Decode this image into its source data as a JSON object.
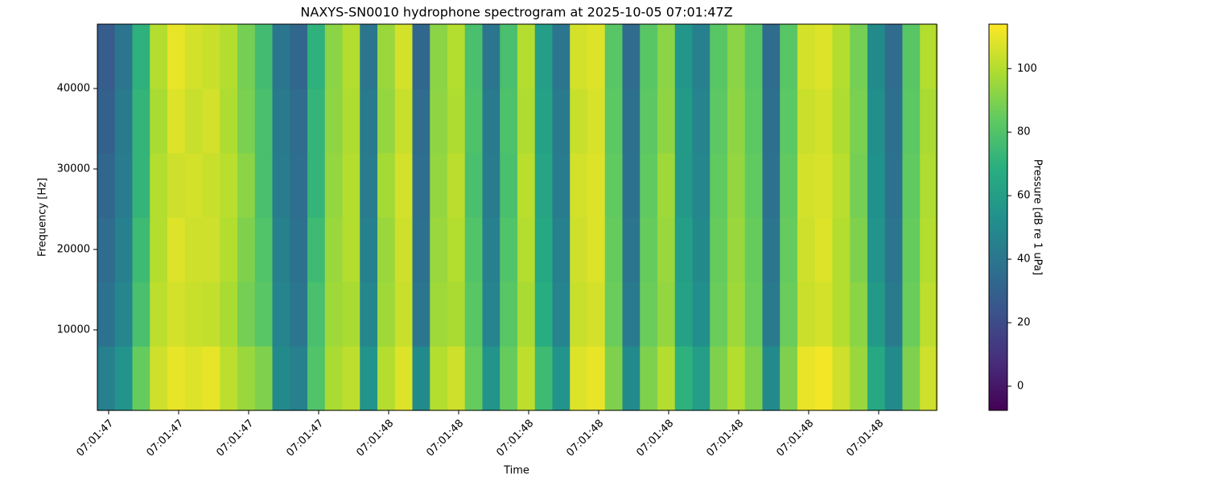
{
  "chart_data": {
    "type": "heatmap",
    "title": "NAXYS-SN0010 hydrophone spectrogram at 2025-10-05 07:01:47Z",
    "xlabel": "Time",
    "ylabel": "Frequency [Hz]",
    "colorbar_label": "Pressure [dB re 1 uPa]",
    "colormap": "viridis",
    "xlim": [
      -0.161,
      11.828
    ],
    "xticks": [
      {
        "value": 0,
        "label": "07:01:47"
      },
      {
        "value": 1,
        "label": "07:01:47"
      },
      {
        "value": 2,
        "label": "07:01:47"
      },
      {
        "value": 3,
        "label": "07:01:47"
      },
      {
        "value": 4,
        "label": "07:01:48"
      },
      {
        "value": 5,
        "label": "07:01:48"
      },
      {
        "value": 6,
        "label": "07:01:48"
      },
      {
        "value": 7,
        "label": "07:01:48"
      },
      {
        "value": 8,
        "label": "07:01:48"
      },
      {
        "value": 9,
        "label": "07:01:48"
      },
      {
        "value": 10,
        "label": "07:01:48"
      },
      {
        "value": 11,
        "label": "07:01:48"
      }
    ],
    "ylim": [
      0,
      48000
    ],
    "yticks": [
      10000,
      20000,
      30000,
      40000
    ],
    "clim": [
      -7.6,
      114
    ],
    "cticks": [
      0,
      20,
      40,
      60,
      80,
      100
    ],
    "x": [
      -0.036,
      0.214,
      0.464,
      0.714,
      0.964,
      1.214,
      1.464,
      1.714,
      1.964,
      2.214,
      2.464,
      2.714,
      2.964,
      3.214,
      3.464,
      3.714,
      3.964,
      4.214,
      4.464,
      4.714,
      4.964,
      5.214,
      5.464,
      5.714,
      5.964,
      6.214,
      6.464,
      6.714,
      6.964,
      7.214,
      7.464,
      7.714,
      7.964,
      8.214,
      8.464,
      8.714,
      8.964,
      9.214,
      9.464,
      9.714,
      9.964,
      10.214,
      10.464,
      10.714,
      10.964,
      11.214,
      11.464,
      11.714
    ],
    "y": [
      4000,
      12000,
      20000,
      28000,
      36000,
      44000
    ],
    "z": [
      [
        45,
        55,
        85,
        105,
        110,
        108,
        110,
        102,
        95,
        90,
        50,
        45,
        80,
        98,
        102,
        55,
        100,
        108,
        50,
        100,
        105,
        85,
        55,
        85,
        102,
        75,
        55,
        108,
        110,
        90,
        50,
        90,
        100,
        70,
        60,
        90,
        100,
        90,
        50,
        90,
        110,
        112,
        105,
        95,
        65,
        50,
        90,
        105
      ],
      [
        38,
        48,
        78,
        102,
        106,
        104,
        103,
        98,
        88,
        82,
        47,
        40,
        78,
        96,
        98,
        48,
        96,
        104,
        40,
        96,
        98,
        82,
        47,
        82,
        98,
        68,
        47,
        104,
        106,
        86,
        42,
        86,
        94,
        62,
        52,
        86,
        96,
        86,
        42,
        86,
        104,
        106,
        100,
        92,
        58,
        42,
        86,
        102
      ],
      [
        35,
        45,
        75,
        100,
        108,
        105,
        105,
        100,
        90,
        80,
        45,
        38,
        75,
        95,
        100,
        45,
        95,
        105,
        38,
        95,
        100,
        80,
        45,
        80,
        100,
        65,
        45,
        105,
        108,
        85,
        40,
        85,
        95,
        60,
        50,
        85,
        95,
        85,
        40,
        85,
        105,
        108,
        100,
        90,
        55,
        40,
        85,
        100
      ],
      [
        33,
        43,
        72,
        100,
        105,
        106,
        104,
        101,
        92,
        78,
        43,
        36,
        72,
        94,
        100,
        43,
        97,
        106,
        36,
        94,
        101,
        78,
        43,
        78,
        101,
        63,
        43,
        106,
        108,
        84,
        38,
        84,
        96,
        58,
        48,
        84,
        94,
        84,
        38,
        84,
        106,
        107,
        101,
        88,
        53,
        38,
        84,
        99
      ],
      [
        30,
        42,
        72,
        98,
        108,
        104,
        106,
        99,
        89,
        78,
        42,
        35,
        72,
        93,
        99,
        42,
        94,
        104,
        35,
        93,
        99,
        79,
        42,
        79,
        99,
        62,
        42,
        104,
        107,
        83,
        37,
        83,
        93,
        58,
        47,
        83,
        93,
        83,
        37,
        83,
        104,
        106,
        99,
        89,
        52,
        37,
        83,
        98
      ],
      [
        28,
        40,
        70,
        100,
        110,
        106,
        104,
        100,
        88,
        76,
        40,
        33,
        70,
        92,
        100,
        40,
        95,
        106,
        33,
        92,
        100,
        78,
        40,
        78,
        100,
        60,
        40,
        106,
        108,
        82,
        35,
        82,
        92,
        56,
        45,
        82,
        92,
        82,
        35,
        82,
        106,
        108,
        100,
        88,
        50,
        35,
        82,
        100
      ]
    ]
  }
}
